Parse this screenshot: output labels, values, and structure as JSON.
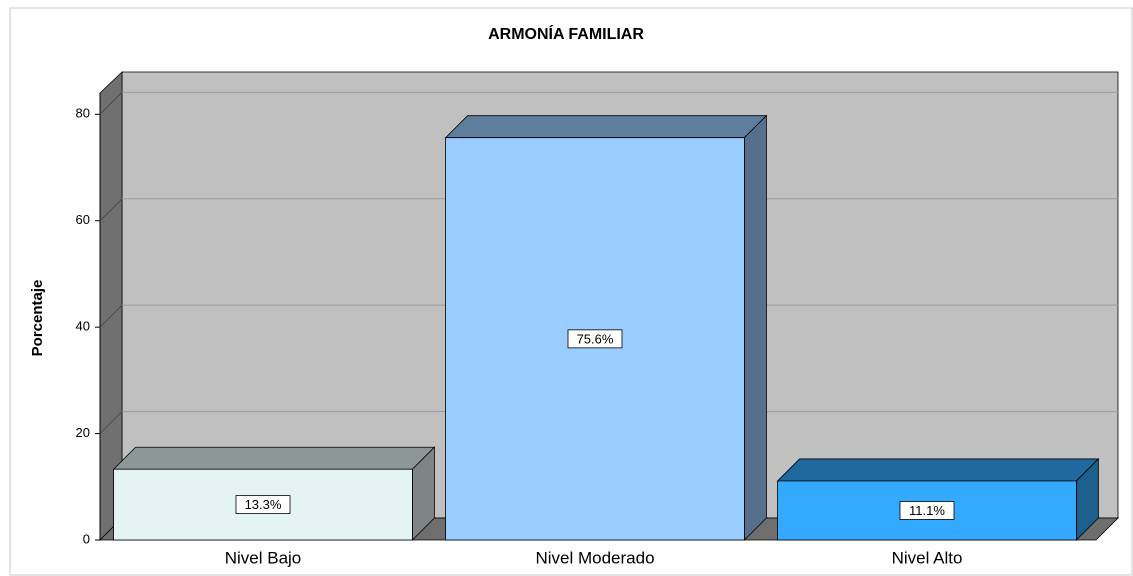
{
  "chart_data": {
    "type": "bar",
    "title": "ARMONÍA FAMILIAR",
    "y_label": "Porcentaje",
    "categories": [
      "Nivel Bajo",
      "Nivel Moderado",
      "Nivel Alto"
    ],
    "values": [
      13.3,
      75.6,
      11.1
    ],
    "value_labels": [
      "13.3%",
      "75.6%",
      "11.1%"
    ],
    "colors": [
      "#e4f4f2",
      "#99ccff",
      "#33aaff"
    ],
    "ylim": [
      0,
      84
    ],
    "yticks": [
      0,
      20,
      40,
      60,
      80
    ],
    "grid": true
  }
}
